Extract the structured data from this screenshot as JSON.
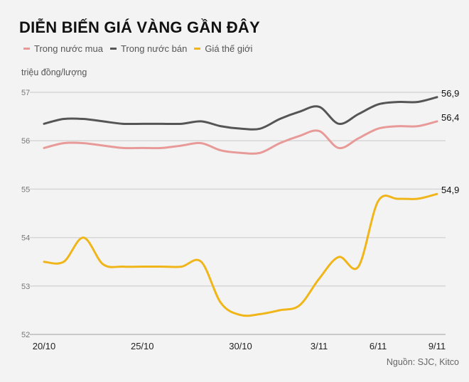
{
  "chart_data": {
    "type": "line",
    "title": "DIỄN BIẾN GIÁ VÀNG GẦN ĐÂY",
    "ylabel": "triệu đồng/lượng",
    "source": "Nguồn: SJC, Kitco",
    "ylim": [
      52,
      57
    ],
    "yticks": [
      "52",
      "53",
      "54",
      "55",
      "56",
      "57"
    ],
    "grid": true,
    "legend_position": "top-left",
    "x": [
      "20/10",
      "21/10",
      "22/10",
      "23/10",
      "24/10",
      "25/10",
      "26/10",
      "27/10",
      "28/10",
      "29/10",
      "30/10",
      "31/10",
      "1/11",
      "2/11",
      "3/11",
      "4/11",
      "5/11",
      "6/11",
      "7/11",
      "8/11",
      "9/11"
    ],
    "xtick_labels": [
      "20/10",
      "25/10",
      "30/10",
      "3/11",
      "6/11",
      "9/11"
    ],
    "series": [
      {
        "name": "Trong nước mua",
        "color": "#e89a98",
        "end_label": "56,4",
        "values": [
          55.85,
          55.95,
          55.95,
          55.9,
          55.85,
          55.85,
          55.85,
          55.9,
          55.95,
          55.8,
          55.75,
          55.75,
          55.95,
          56.1,
          56.2,
          55.85,
          56.05,
          56.25,
          56.3,
          56.3,
          56.4
        ]
      },
      {
        "name": "Trong nước bán",
        "color": "#555555",
        "end_label": "56,9",
        "values": [
          56.35,
          56.45,
          56.45,
          56.4,
          56.35,
          56.35,
          56.35,
          56.35,
          56.4,
          56.3,
          56.25,
          56.25,
          56.45,
          56.6,
          56.7,
          56.35,
          56.55,
          56.75,
          56.8,
          56.8,
          56.9
        ]
      },
      {
        "name": "Giá thế giới",
        "color": "#f0b619",
        "end_label": "54,9",
        "values": [
          53.5,
          53.5,
          54.0,
          53.45,
          53.4,
          53.4,
          53.4,
          53.4,
          53.5,
          52.65,
          52.4,
          52.42,
          52.5,
          52.6,
          53.15,
          53.6,
          53.4,
          54.75,
          54.8,
          54.8,
          54.9
        ]
      }
    ]
  }
}
